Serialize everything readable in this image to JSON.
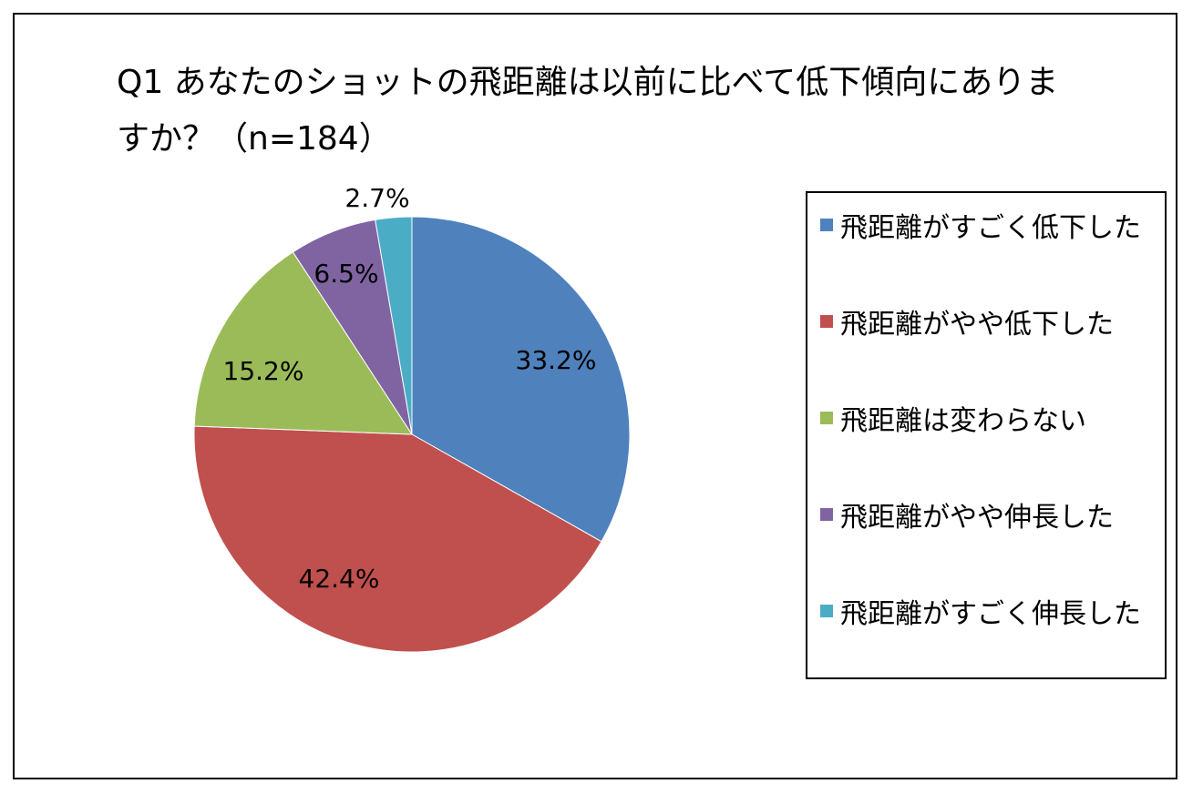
{
  "chart_data": {
    "type": "pie",
    "title": "Q1 あなたのショットの飛距離は以前に比べて低下傾向にありますか？（n=184）",
    "categories": [
      "飛距離がすごく低下した",
      "飛距離がやや低下した",
      "飛距離は変わらない",
      "飛距離がやや伸長した",
      "飛距離がすごく伸長した"
    ],
    "values": [
      33.2,
      42.4,
      15.2,
      6.5,
      2.7
    ],
    "labels": [
      "33.2%",
      "42.4%",
      "15.2%",
      "6.5%",
      "2.7%"
    ],
    "colors": [
      "#4F81BD",
      "#C0504D",
      "#9BBB59",
      "#8064A2",
      "#4BACC6"
    ],
    "legend_position": "right"
  }
}
